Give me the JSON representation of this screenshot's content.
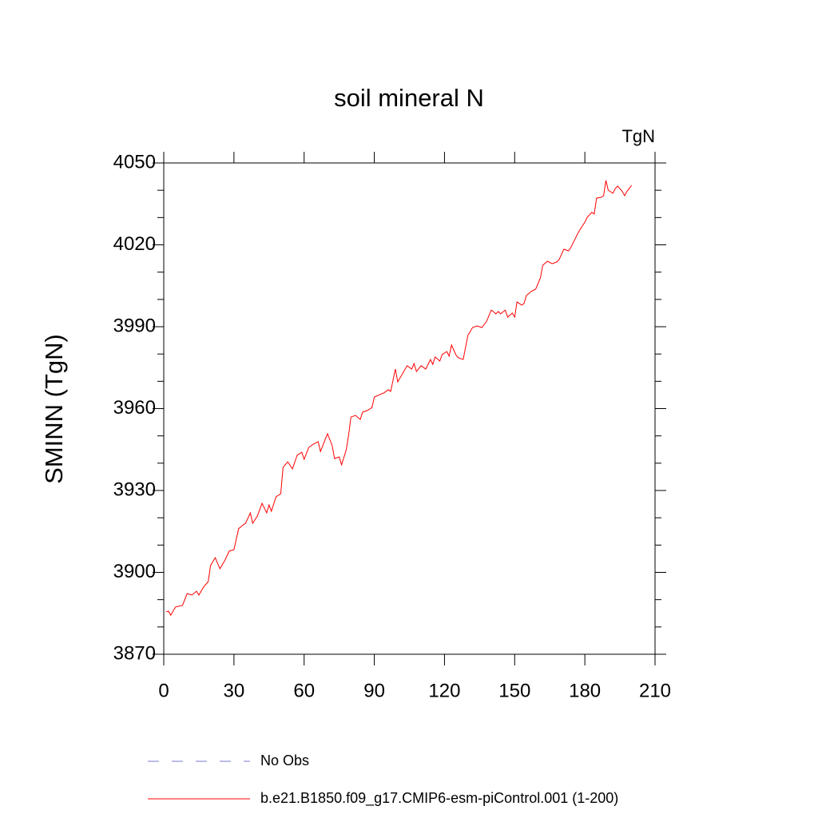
{
  "chart_data": {
    "type": "line",
    "title": "soil mineral N",
    "ylabel": "SMINN  (TgN)",
    "units": "TgN",
    "xlim": [
      0,
      210
    ],
    "xticks": [
      0,
      30,
      60,
      90,
      120,
      150,
      180,
      210
    ],
    "ylim": [
      3870,
      4050
    ],
    "yticks": [
      3870,
      3900,
      3930,
      3960,
      3990,
      4020,
      4050
    ],
    "yminorticks": [
      3880,
      3890,
      3910,
      3920,
      3940,
      3950,
      3970,
      3980,
      4000,
      4010,
      4030,
      4040
    ],
    "grid": false,
    "x": [
      1,
      2,
      3,
      5,
      8,
      10,
      12,
      14,
      15,
      17,
      19,
      20,
      22,
      24,
      26,
      28,
      30,
      32,
      34,
      35,
      37,
      38,
      40,
      42,
      44,
      45,
      46,
      48,
      50,
      51,
      53,
      55,
      57,
      59,
      60,
      62,
      64,
      66,
      67,
      69,
      70,
      72,
      73,
      75,
      76,
      78,
      79,
      80,
      82,
      84,
      85,
      87,
      89,
      90,
      93,
      94,
      96,
      97,
      99,
      100,
      102,
      104,
      106,
      107,
      108,
      110,
      112,
      114,
      115,
      116,
      118,
      119,
      121,
      122,
      123,
      125,
      126,
      128,
      130,
      132,
      134,
      136,
      138,
      140,
      142,
      143,
      144,
      146,
      147,
      149,
      150,
      151,
      153,
      154,
      155,
      157,
      159,
      161,
      162,
      164,
      166,
      168,
      169,
      171,
      173,
      174,
      177,
      178,
      180,
      181,
      183,
      184,
      185,
      187,
      188,
      189,
      190,
      192,
      193,
      194,
      196,
      197,
      198,
      200
    ],
    "series": [
      {
        "name": "b.e21.B1850.f09_g17.CMIP6-esm-piControl.001 (1-200)",
        "color": "#ff0000",
        "values": [
          3885.5,
          3885.8,
          3884.3,
          3887.3,
          3887.9,
          3892.2,
          3891.7,
          3893.1,
          3891.7,
          3894.6,
          3896.6,
          3902.5,
          3905.4,
          3901.3,
          3904.2,
          3907.8,
          3908.3,
          3916.0,
          3917.4,
          3918.0,
          3921.8,
          3918.0,
          3920.6,
          3925.3,
          3921.8,
          3924.7,
          3922.4,
          3927.7,
          3928.8,
          3938.5,
          3940.5,
          3937.9,
          3942.9,
          3944.0,
          3941.4,
          3945.8,
          3947.0,
          3947.9,
          3944.3,
          3948.7,
          3950.8,
          3946.4,
          3941.7,
          3942.3,
          3939.4,
          3944.9,
          3950.2,
          3956.9,
          3957.5,
          3956.0,
          3958.7,
          3959.3,
          3960.4,
          3964.2,
          3965.4,
          3965.7,
          3966.9,
          3966.3,
          3974.5,
          3969.8,
          3972.7,
          3975.7,
          3974.5,
          3976.5,
          3973.6,
          3975.7,
          3974.5,
          3978.0,
          3976.2,
          3978.9,
          3977.4,
          3979.8,
          3980.9,
          3979.2,
          3983.3,
          3979.5,
          3978.6,
          3978.0,
          3986.8,
          3989.7,
          3990.3,
          3989.7,
          3992.0,
          3996.1,
          3994.7,
          3995.6,
          3994.7,
          3996.1,
          3993.5,
          3995.0,
          3993.5,
          3999.1,
          3997.9,
          3998.5,
          4001.4,
          4002.9,
          4003.8,
          4007.9,
          4012.5,
          4014.0,
          4013.1,
          4013.7,
          4014.6,
          4018.4,
          4017.8,
          4019.0,
          4024.2,
          4025.7,
          4028.3,
          4030.1,
          4031.9,
          4031.3,
          4037.1,
          4037.4,
          4038.0,
          4043.6,
          4040.0,
          4038.9,
          4040.6,
          4041.5,
          4039.6,
          4038.0,
          4039.6,
          4041.8
        ]
      }
    ],
    "reference_series": {
      "name": "No Obs",
      "color": "#7b7bd0",
      "style": "dashed"
    }
  }
}
